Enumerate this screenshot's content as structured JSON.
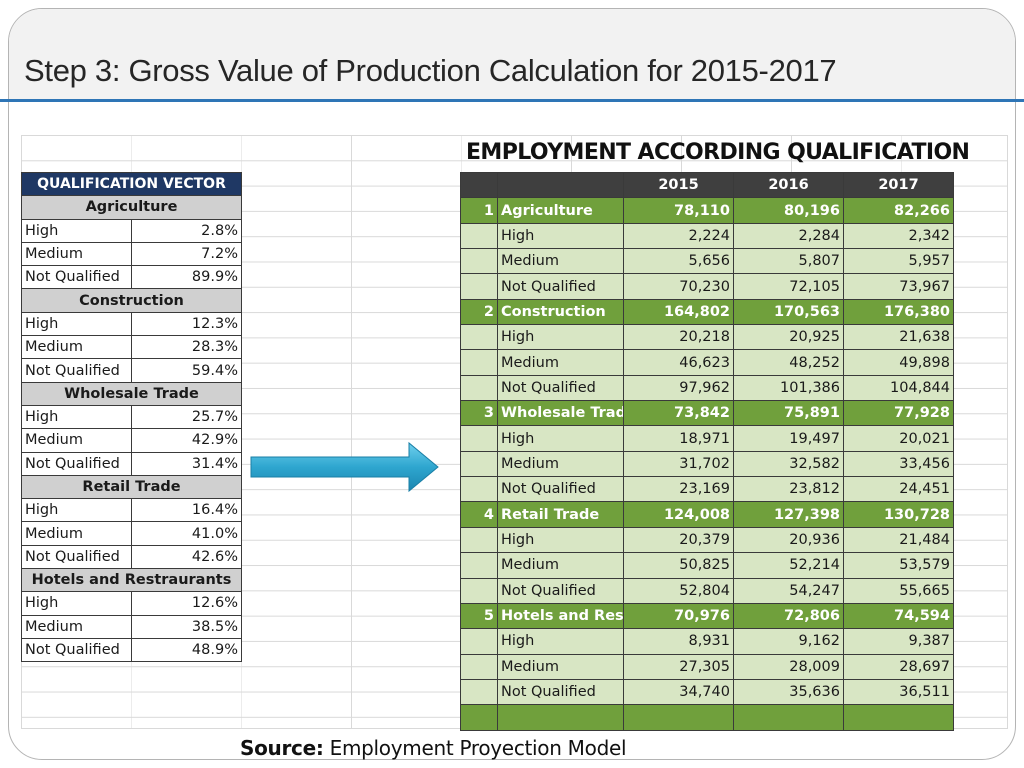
{
  "title": "Step 3: Gross Value of Production Calculation for 2015-2017",
  "qualification_vector": {
    "header": "QUALIFICATION VECTOR",
    "sectors": [
      {
        "name": "Agriculture",
        "rows": [
          {
            "label": "High",
            "value": "2.8%"
          },
          {
            "label": "Medium",
            "value": "7.2%"
          },
          {
            "label": "Not Qualified",
            "value": "89.9%"
          }
        ]
      },
      {
        "name": "Construction",
        "rows": [
          {
            "label": "High",
            "value": "12.3%"
          },
          {
            "label": "Medium",
            "value": "28.3%"
          },
          {
            "label": "Not Qualified",
            "value": "59.4%"
          }
        ]
      },
      {
        "name": "Wholesale Trade",
        "rows": [
          {
            "label": "High",
            "value": "25.7%"
          },
          {
            "label": "Medium",
            "value": "42.9%"
          },
          {
            "label": "Not Qualified",
            "value": "31.4%"
          }
        ]
      },
      {
        "name": "Retail Trade",
        "rows": [
          {
            "label": "High",
            "value": "16.4%"
          },
          {
            "label": "Medium",
            "value": "41.0%"
          },
          {
            "label": "Not Qualified",
            "value": "42.6%"
          }
        ]
      },
      {
        "name": "Hotels and Restraurants",
        "rows": [
          {
            "label": "High",
            "value": "12.6%"
          },
          {
            "label": "Medium",
            "value": "38.5%"
          },
          {
            "label": "Not Qualified",
            "value": "48.9%"
          }
        ]
      }
    ]
  },
  "employment": {
    "title": "EMPLOYMENT ACCORDING QUALIFICATION",
    "years": [
      "2015",
      "2016",
      "2017"
    ],
    "sectors": [
      {
        "num": "1",
        "name": "Agriculture",
        "totals": [
          "78,110",
          "80,196",
          "82,266"
        ],
        "rows": [
          {
            "label": "High",
            "values": [
              "2,224",
              "2,284",
              "2,342"
            ]
          },
          {
            "label": "Medium",
            "values": [
              "5,656",
              "5,807",
              "5,957"
            ]
          },
          {
            "label": "Not Qualified",
            "values": [
              "70,230",
              "72,105",
              "73,967"
            ]
          }
        ]
      },
      {
        "num": "2",
        "name": "Construction",
        "totals": [
          "164,802",
          "170,563",
          "176,380"
        ],
        "rows": [
          {
            "label": "High",
            "values": [
              "20,218",
              "20,925",
              "21,638"
            ]
          },
          {
            "label": "Medium",
            "values": [
              "46,623",
              "48,252",
              "49,898"
            ]
          },
          {
            "label": "Not Qualified",
            "values": [
              "97,962",
              "101,386",
              "104,844"
            ]
          }
        ]
      },
      {
        "num": "3",
        "name": "Wholesale Trad",
        "totals": [
          "73,842",
          "75,891",
          "77,928"
        ],
        "rows": [
          {
            "label": "High",
            "values": [
              "18,971",
              "19,497",
              "20,021"
            ]
          },
          {
            "label": "Medium",
            "values": [
              "31,702",
              "32,582",
              "33,456"
            ]
          },
          {
            "label": "Not Qualified",
            "values": [
              "23,169",
              "23,812",
              "24,451"
            ]
          }
        ]
      },
      {
        "num": "4",
        "name": "Retail Trade",
        "totals": [
          "124,008",
          "127,398",
          "130,728"
        ],
        "rows": [
          {
            "label": "High",
            "values": [
              "20,379",
              "20,936",
              "21,484"
            ]
          },
          {
            "label": "Medium",
            "values": [
              "50,825",
              "52,214",
              "53,579"
            ]
          },
          {
            "label": "Not Qualified",
            "values": [
              "52,804",
              "54,247",
              "55,665"
            ]
          }
        ]
      },
      {
        "num": "5",
        "name": "Hotels and Rest",
        "totals": [
          "70,976",
          "72,806",
          "74,594"
        ],
        "rows": [
          {
            "label": "High",
            "values": [
              "8,931",
              "9,162",
              "9,387"
            ]
          },
          {
            "label": "Medium",
            "values": [
              "27,305",
              "28,009",
              "28,697"
            ]
          },
          {
            "label": "Not Qualified",
            "values": [
              "34,740",
              "35,636",
              "36,511"
            ]
          }
        ]
      }
    ]
  },
  "source": {
    "label": "Source:",
    "text": "Employment Proyection Model"
  },
  "arrow_icon": "right-arrow-icon",
  "colors": {
    "accent_rule": "#2e75b6",
    "vector_header": "#1f3864",
    "sector_green": "#70a03c",
    "row_green": "#d8e6c4"
  }
}
